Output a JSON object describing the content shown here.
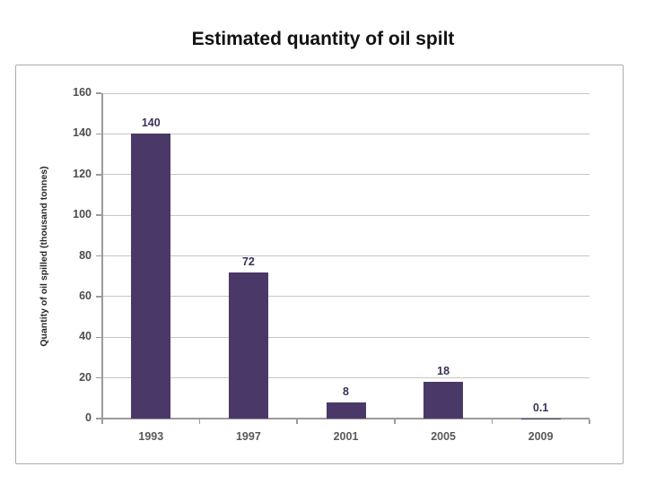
{
  "page": {
    "title": "Estimated quantity of oil spilt"
  },
  "chart_data": {
    "type": "bar",
    "title": "Estimated quantity of oil spilt",
    "categories": [
      "1993",
      "1997",
      "2001",
      "2005",
      "2009"
    ],
    "values": [
      140,
      72,
      8,
      18,
      0.1
    ],
    "data_labels": [
      "140",
      "72",
      "8",
      "18",
      "0.1"
    ],
    "xlabel": "",
    "ylabel": "Quantity of oil spilled (thousand tonnes)",
    "ylim": [
      0,
      160
    ],
    "ytick_step": 20,
    "grid": true,
    "legend": "none",
    "bar_color": "#4a3968",
    "gridline_color": "#c6c6c6",
    "axis_color": "#9b9b9b",
    "ytick_label_color": "#4d4d4d",
    "xtick_label_color": "#595959",
    "data_label_color": "#3c3156",
    "frame_border_color": "#ababab"
  }
}
